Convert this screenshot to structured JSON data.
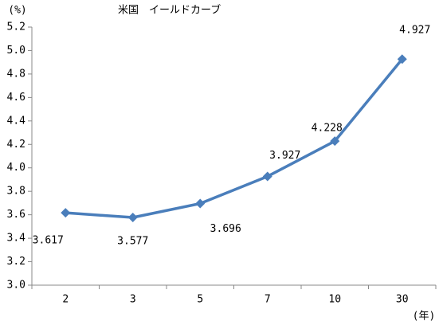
{
  "chart_data": {
    "type": "line",
    "title": "米国　イールドカーブ",
    "y_label": "(%)",
    "x_label": "(年)",
    "categories": [
      "2",
      "3",
      "5",
      "7",
      "10",
      "30"
    ],
    "series": [
      {
        "name": "米国",
        "color": "#4a7ebb",
        "values": [
          3.617,
          3.577,
          3.696,
          3.927,
          4.228,
          4.927
        ]
      }
    ],
    "ylim": [
      3.0,
      5.2
    ],
    "yticks": [
      {
        "value": 3.0,
        "label": "3.0"
      },
      3.2,
      3.4,
      3.6,
      3.8,
      {
        "value": 4.0,
        "label": "4.0"
      },
      4.2,
      4.4,
      4.6,
      4.8,
      {
        "value": 5.0,
        "label": "5.0"
      },
      5.2
    ]
  }
}
